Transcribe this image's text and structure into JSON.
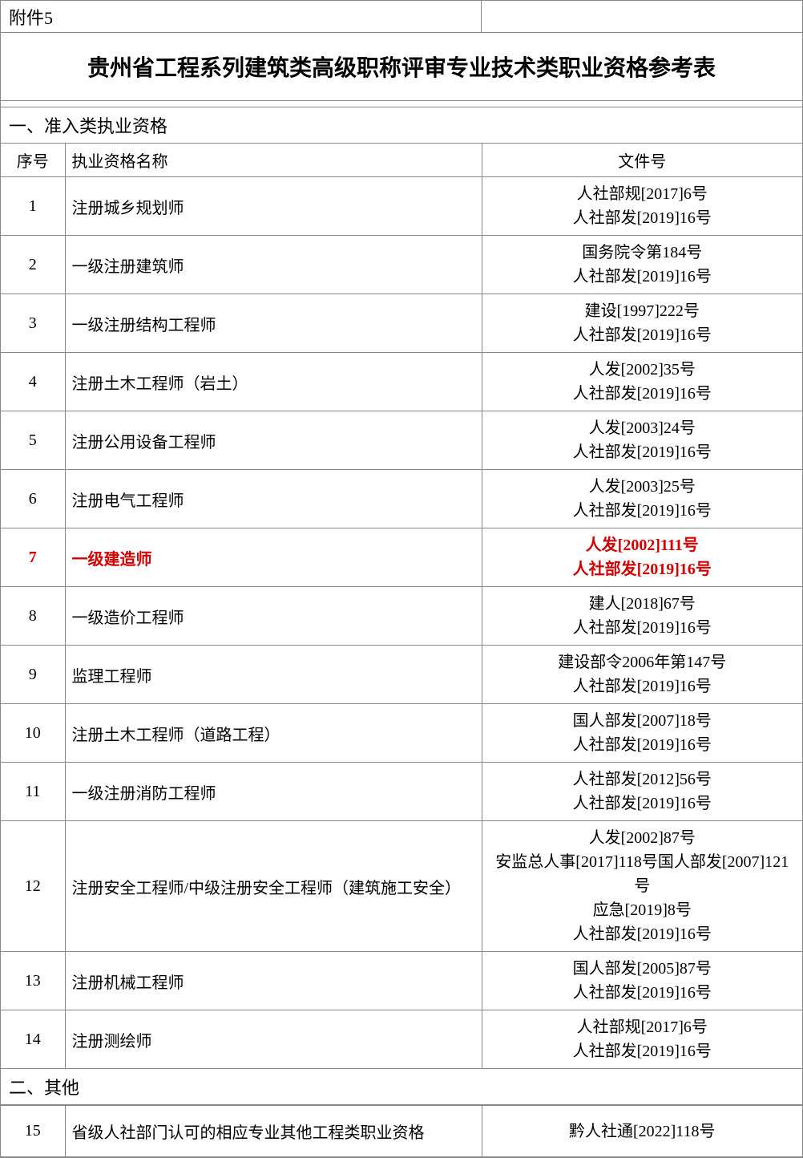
{
  "attachment_label": "附件5",
  "title": "贵州省工程系列建筑类高级职称评审专业技术类职业资格参考表",
  "section1_header": "一、准入类执业资格",
  "section2_header": "二、其他",
  "cols": {
    "idx": "序号",
    "name": "执业资格名称",
    "doc": "文件号"
  },
  "rows1": [
    {
      "idx": "1",
      "name": "注册城乡规划师",
      "doc": "人社部规[2017]6号\n人社部发[2019]16号",
      "hl": false
    },
    {
      "idx": "2",
      "name": "一级注册建筑师",
      "doc": "国务院令第184号\n人社部发[2019]16号",
      "hl": false
    },
    {
      "idx": "3",
      "name": "一级注册结构工程师",
      "doc": "建设[1997]222号\n人社部发[2019]16号",
      "hl": false
    },
    {
      "idx": "4",
      "name": "注册土木工程师（岩土）",
      "doc": "人发[2002]35号\n人社部发[2019]16号",
      "hl": false
    },
    {
      "idx": "5",
      "name": "注册公用设备工程师",
      "doc": "人发[2003]24号\n人社部发[2019]16号",
      "hl": false
    },
    {
      "idx": "6",
      "name": "注册电气工程师",
      "doc": "人发[2003]25号\n人社部发[2019]16号",
      "hl": false
    },
    {
      "idx": "7",
      "name": "一级建造师",
      "doc": "人发[2002]111号\n人社部发[2019]16号",
      "hl": true
    },
    {
      "idx": "8",
      "name": "一级造价工程师",
      "doc": "建人[2018]67号\n人社部发[2019]16号",
      "hl": false
    },
    {
      "idx": "9",
      "name": "监理工程师",
      "doc": "建设部令2006年第147号\n人社部发[2019]16号",
      "hl": false
    },
    {
      "idx": "10",
      "name": "注册土木工程师（道路工程）",
      "doc": "国人部发[2007]18号\n人社部发[2019]16号",
      "hl": false
    },
    {
      "idx": "11",
      "name": "一级注册消防工程师",
      "doc": "人社部发[2012]56号\n人社部发[2019]16号",
      "hl": false
    },
    {
      "idx": "12",
      "name": "注册安全工程师/中级注册安全工程师（建筑施工安全）",
      "doc": "人发[2002]87号\n安监总人事[2017]118号国人部发[2007]121号\n应急[2019]8号\n人社部发[2019]16号",
      "hl": false,
      "tall": true
    },
    {
      "idx": "13",
      "name": "注册机械工程师",
      "doc": "国人部发[2005]87号\n人社部发[2019]16号",
      "hl": false
    },
    {
      "idx": "14",
      "name": "注册测绘师",
      "doc": "人社部规[2017]6号\n人社部发[2019]16号",
      "hl": false
    }
  ],
  "rows2": [
    {
      "idx": "15",
      "name": "省级人社部门认可的相应专业其他工程类职业资格",
      "doc": "黔人社通[2022]118号",
      "hl": false
    }
  ]
}
